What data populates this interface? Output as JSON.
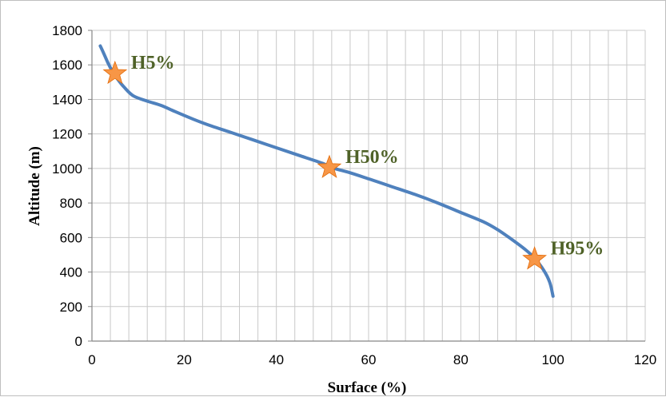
{
  "chart_data": {
    "type": "line",
    "title": "",
    "xlabel": "Surface (%)",
    "ylabel": "Altitude (m)",
    "xlim": [
      0,
      120
    ],
    "ylim": [
      0,
      1800
    ],
    "x_ticks": [
      0,
      20,
      40,
      60,
      80,
      100,
      120
    ],
    "y_ticks": [
      0,
      200,
      400,
      600,
      800,
      1000,
      1200,
      1400,
      1600,
      1800
    ],
    "x_tick_labels": [
      "0",
      "20",
      "40",
      "60",
      "80",
      "100",
      "120"
    ],
    "y_tick_labels": [
      "0",
      "200",
      "400",
      "600",
      "800",
      "1000",
      "1200",
      "1400",
      "1600",
      "1800"
    ],
    "grid": true,
    "x_minor_step": 4,
    "line_color": "#4f81bd",
    "series": [
      {
        "x": [
          1.8,
          2.5,
          3.5,
          4.5,
          5.5,
          7,
          9,
          12,
          15,
          18,
          22,
          26,
          30,
          35,
          40,
          45,
          50,
          52,
          56,
          60,
          65,
          70,
          75,
          80,
          85,
          88,
          91,
          94,
          96,
          98,
          99.3,
          100
        ],
        "y": [
          1710,
          1670,
          1610,
          1560,
          1520,
          1470,
          1420,
          1390,
          1365,
          1330,
          1285,
          1245,
          1210,
          1165,
          1120,
          1075,
          1030,
          1005,
          975,
          940,
          895,
          850,
          800,
          745,
          690,
          645,
          590,
          530,
          480,
          410,
          340,
          260
        ]
      }
    ],
    "markers": [
      {
        "label": "H5%",
        "x": 5,
        "y": 1550,
        "color": "#f79646"
      },
      {
        "label": "H50%",
        "x": 51.5,
        "y": 1005,
        "color": "#f79646"
      },
      {
        "label": "H95%",
        "x": 96,
        "y": 475,
        "color": "#f79646"
      }
    ]
  }
}
